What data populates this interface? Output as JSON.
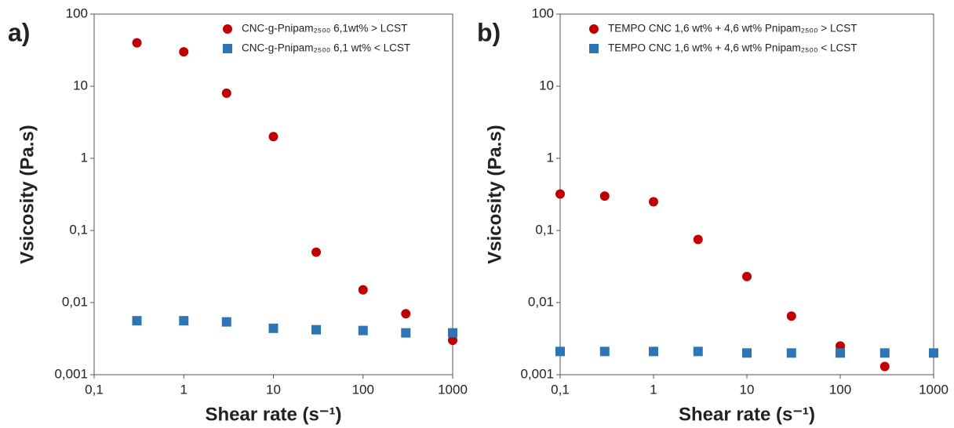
{
  "chart_data": [
    {
      "type": "scatter",
      "panel_label": "a)",
      "x_label": "Shear rate (s⁻¹)",
      "y_label": "Vsicosity (Pa.s)",
      "xscale": "log",
      "yscale": "log",
      "xlim": [
        0.1,
        1000
      ],
      "ylim": [
        0.001,
        100
      ],
      "xticks": [
        {
          "value": 0.1,
          "label": "0,1"
        },
        1,
        10,
        100,
        1000
      ],
      "yticks": [
        {
          "value": 0.001,
          "label": "0,001"
        },
        {
          "value": 0.01,
          "label": "0,01"
        },
        {
          "value": 0.1,
          "label": "0,1"
        },
        1,
        10,
        100
      ],
      "legend": "upper right",
      "series": [
        {
          "name": "CNC-g-Pnipam₂₅₀₀ 6,1wt%  > LCST",
          "color": "#c00000",
          "marker": "circle",
          "x": [
            0.3,
            1,
            3,
            10,
            30,
            100,
            300,
            1000
          ],
          "values": [
            40,
            30,
            8,
            2,
            0.05,
            0.015,
            0.007,
            0.003
          ]
        },
        {
          "name": "CNC-g-Pnipam₂₅₀₀ 6,1 wt% < LCST",
          "color": "#2e75b6",
          "marker": "square",
          "x": [
            0.3,
            1,
            3,
            10,
            30,
            100,
            300,
            1000
          ],
          "values": [
            0.0056,
            0.0056,
            0.0054,
            0.0044,
            0.0042,
            0.0041,
            0.0038,
            0.0038
          ]
        }
      ]
    },
    {
      "type": "scatter",
      "panel_label": "b)",
      "x_label": "Shear rate (s⁻¹)",
      "y_label": "Vsicosity (Pa.s)",
      "xscale": "log",
      "yscale": "log",
      "xlim": [
        0.1,
        1000
      ],
      "ylim": [
        0.001,
        100
      ],
      "xticks": [
        {
          "value": 0.1,
          "label": "0,1"
        },
        1,
        10,
        100,
        1000
      ],
      "yticks": [
        {
          "value": 0.001,
          "label": "0,001"
        },
        {
          "value": 0.01,
          "label": "0,01"
        },
        {
          "value": 0.1,
          "label": "0,1"
        },
        1,
        10,
        100
      ],
      "legend": "upper right",
      "series": [
        {
          "name": "TEMPO CNC 1,6 wt% + 4,6 wt% Pnipam₂₅₀₀ > LCST",
          "color": "#c00000",
          "marker": "circle",
          "x": [
            0.1,
            0.3,
            1,
            3,
            10,
            30,
            100,
            300
          ],
          "values": [
            0.32,
            0.3,
            0.25,
            0.075,
            0.023,
            0.0065,
            0.0025,
            0.0013
          ]
        },
        {
          "name": "TEMPO CNC 1,6 wt% + 4,6 wt% Pnipam₂₅₀₀ < LCST",
          "color": "#2e75b6",
          "marker": "square",
          "x": [
            0.1,
            0.3,
            1,
            3,
            10,
            30,
            100,
            300,
            1000
          ],
          "values": [
            0.0021,
            0.0021,
            0.0021,
            0.0021,
            0.002,
            0.002,
            0.002,
            0.002,
            0.002
          ]
        }
      ]
    }
  ]
}
